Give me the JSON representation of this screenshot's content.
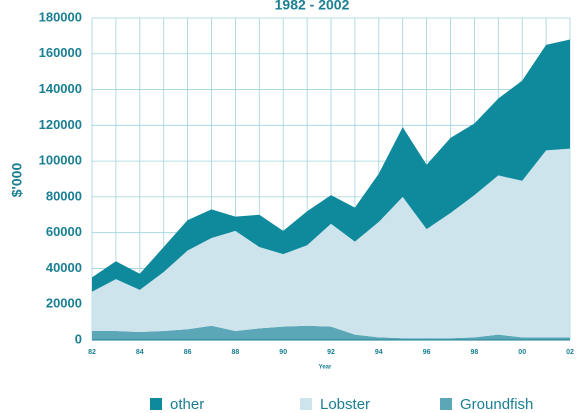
{
  "chart_data": {
    "type": "area",
    "title": "1982 - 2002",
    "x_label": "Year",
    "y_label": "$'000",
    "categories": [
      "82",
      null,
      "84",
      null,
      "86",
      null,
      "88",
      null,
      "90",
      null,
      "92",
      null,
      "94",
      null,
      "96",
      null,
      "98",
      null,
      "00",
      null,
      "02"
    ],
    "series": [
      {
        "name": "other",
        "color": "#0e8a9c",
        "values": [
          8000,
          10000,
          9000,
          14000,
          17000,
          16000,
          8000,
          18000,
          13000,
          19000,
          16000,
          19000,
          27000,
          39000,
          36000,
          42000,
          40000,
          43000,
          56000,
          59000,
          61000
        ]
      },
      {
        "name": "Lobster",
        "color": "#cde4ec",
        "values": [
          22000,
          29000,
          23500,
          33000,
          44000,
          49000,
          56000,
          45500,
          40500,
          45000,
          57500,
          52000,
          64500,
          79000,
          61000,
          70000,
          79500,
          89000,
          87500,
          104500,
          105500
        ]
      },
      {
        "name": "Groundfish",
        "color": "#5ba7b8",
        "values": [
          5000,
          5000,
          4500,
          5000,
          6000,
          8000,
          5000,
          6500,
          7500,
          8000,
          7500,
          3000,
          1500,
          1000,
          1000,
          1000,
          1500,
          3000,
          1500,
          1500,
          1500
        ]
      }
    ],
    "ylim": [
      0,
      180000
    ],
    "yticks": [
      0,
      20000,
      40000,
      60000,
      80000,
      100000,
      120000,
      140000,
      160000,
      180000
    ],
    "grid": true,
    "stacked": true,
    "legend": "bottom"
  }
}
